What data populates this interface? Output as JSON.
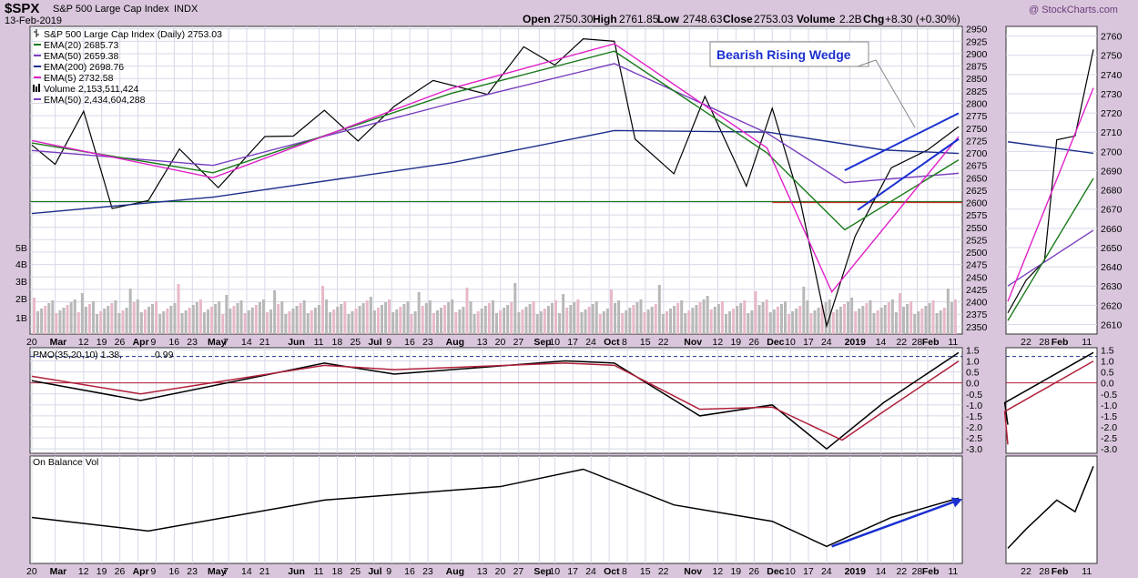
{
  "header": {
    "title": "$SPX",
    "subtitle": "S&P 500 Large Cap Index",
    "exchange": "INDX",
    "date": "13-Feb-2019",
    "watermark": "@ StockCharts.com",
    "open_label": "Open",
    "open": "2750.30",
    "high_label": "High",
    "high": "2761.85",
    "low_label": "Low",
    "low": "2748.63",
    "close_label": "Close",
    "close": "2753.03",
    "volume_label": "Volume",
    "volume": "2.2B",
    "chg_label": "Chg",
    "chg": "+8.30 (+0.30%)"
  },
  "legend": [
    {
      "text": "S&P 500 Large Cap Index (Daily) 2753.03",
      "color": "#000000",
      "icon": "candlestick-icon"
    },
    {
      "text": "EMA(20) 2685.73",
      "color": "#1a7a1a",
      "icon": "line"
    },
    {
      "text": "EMA(50) 2659.38",
      "color": "#7a3fbf",
      "icon": "line"
    },
    {
      "text": "EMA(200) 2698.76",
      "color": "#1c2f8a",
      "icon": "line"
    },
    {
      "text": "EMA(5) 2732.58",
      "color": "#e020c8",
      "icon": "line"
    },
    {
      "text": "Volume 2,153,511,424",
      "color": "#000000",
      "icon": "volume-bars-icon"
    },
    {
      "text": "EMA(50) 2,434,604,288",
      "color": "#7a3fbf",
      "icon": "line"
    }
  ],
  "annotation": "Bearish Rising Wedge",
  "pmo_label": "PMO(35,20,10) 1.38,",
  "pmo_signal_value": "0.99",
  "obv_label": "On Balance Vol",
  "colors": {
    "price": "#000000",
    "ema20": "#1a7a1a",
    "ema50": "#7a3fbf",
    "ema200": "#1c2f8a",
    "ema5": "#e020c8",
    "support": "#1a7a1a",
    "resistance": "#c83030",
    "annotation": "#1a2fd0",
    "pmo": "#000000",
    "pmo_signal": "#b0203a",
    "vol_up": "#b8b8b8",
    "vol_down": "#e8b8c8"
  },
  "chart_data": [
    {
      "type": "line",
      "panel": "price-main",
      "title": "S&P 500 Large Cap Index (Daily)",
      "x_tick_labels": [
        "20",
        "Mar",
        "12",
        "19",
        "26",
        "Apr",
        "9",
        "16",
        "23",
        "May",
        "7",
        "14",
        "21",
        "Jun",
        "11",
        "18",
        "25",
        "Jul",
        "9",
        "16",
        "23",
        "Aug",
        "13",
        "20",
        "27",
        "Sep",
        "10",
        "17",
        "24",
        "Oct",
        "8",
        "15",
        "22",
        "Nov",
        "12",
        "19",
        "26",
        "Dec",
        "10",
        "17",
        "24",
        "2019",
        "14",
        "22",
        "28",
        "Feb",
        "11"
      ],
      "x_range": [
        "2018-02-20",
        "2019-02-13"
      ],
      "ylim": [
        2335,
        2955
      ],
      "y_ticks": [
        2350,
        2375,
        2400,
        2425,
        2450,
        2475,
        2500,
        2525,
        2550,
        2575,
        2600,
        2625,
        2650,
        2675,
        2700,
        2725,
        2750,
        2775,
        2800,
        2825,
        2850,
        2875,
        2900,
        2925,
        2950
      ],
      "volume_axis_labels": [
        "1B",
        "2B",
        "3B",
        "4B",
        "5B"
      ],
      "horizontal_lines": [
        {
          "y": 2602,
          "color": "green",
          "span": "full"
        },
        {
          "y": 2600,
          "color": "red",
          "span": "2018-12-03 to 2019-02-13"
        }
      ],
      "series": [
        {
          "name": "S&P 500 Large Cap Index (Daily)",
          "x": [
            "2018-02-20",
            "2018-03-01",
            "2018-03-12",
            "2018-03-23",
            "2018-04-06",
            "2018-04-18",
            "2018-05-03",
            "2018-05-21",
            "2018-06-01",
            "2018-06-13",
            "2018-06-26",
            "2018-07-10",
            "2018-07-25",
            "2018-08-15",
            "2018-08-29",
            "2018-09-10",
            "2018-09-21",
            "2018-10-03",
            "2018-10-11",
            "2018-10-26",
            "2018-11-07",
            "2018-11-23",
            "2018-12-03",
            "2018-12-14",
            "2018-12-24",
            "2019-01-04",
            "2019-01-18",
            "2019-02-01",
            "2019-02-13"
          ],
          "values": [
            2716,
            2677,
            2784,
            2588,
            2604,
            2708,
            2630,
            2733,
            2734,
            2786,
            2724,
            2794,
            2846,
            2818,
            2914,
            2877,
            2930,
            2925,
            2728,
            2658,
            2814,
            2633,
            2790,
            2599,
            2351,
            2532,
            2670,
            2706,
            2753
          ]
        },
        {
          "name": "EMA(200)",
          "x": [
            "2018-02-20",
            "2018-05-01",
            "2018-08-01",
            "2018-10-03",
            "2018-12-01",
            "2019-01-15",
            "2019-02-13"
          ],
          "values": [
            2578,
            2611,
            2680,
            2745,
            2742,
            2706,
            2699
          ]
        },
        {
          "name": "EMA(50)",
          "x": [
            "2018-02-20",
            "2018-05-01",
            "2018-08-01",
            "2018-10-03",
            "2018-12-01",
            "2018-12-31",
            "2019-02-13"
          ],
          "values": [
            2705,
            2675,
            2800,
            2880,
            2740,
            2640,
            2659
          ]
        },
        {
          "name": "EMA(20)",
          "x": [
            "2018-02-20",
            "2018-05-01",
            "2018-08-01",
            "2018-10-03",
            "2018-12-01",
            "2018-12-31",
            "2019-02-13"
          ],
          "values": [
            2720,
            2660,
            2820,
            2905,
            2700,
            2545,
            2686
          ]
        },
        {
          "name": "EMA(5)",
          "x": [
            "2018-02-20",
            "2018-05-01",
            "2018-08-01",
            "2018-10-03",
            "2018-12-01",
            "2018-12-26",
            "2019-02-13"
          ],
          "values": [
            2725,
            2650,
            2830,
            2920,
            2710,
            2420,
            2733
          ]
        }
      ]
    },
    {
      "type": "line",
      "panel": "price-inset",
      "x_tick_labels": [
        "22",
        "28",
        "Feb",
        "11"
      ],
      "ylim": [
        2605,
        2765
      ],
      "y_ticks": [
        2610,
        2620,
        2630,
        2640,
        2650,
        2660,
        2670,
        2680,
        2690,
        2700,
        2710,
        2720,
        2730,
        2740,
        2750,
        2760
      ],
      "series": [
        {
          "name": "S&P 500 Large Cap Index (Daily)",
          "x": [
            "2019-01-16",
            "2019-01-22",
            "2019-01-28",
            "2019-02-01",
            "2019-02-07",
            "2019-02-13"
          ],
          "values": [
            2616,
            2633,
            2643,
            2706,
            2708,
            2753
          ]
        },
        {
          "name": "EMA(200)",
          "x": [
            "2019-01-16",
            "2019-02-13"
          ],
          "values": [
            2705,
            2699
          ]
        },
        {
          "name": "EMA(50)",
          "x": [
            "2019-01-16",
            "2019-02-13"
          ],
          "values": [
            2630,
            2659
          ]
        },
        {
          "name": "EMA(20)",
          "x": [
            "2019-01-16",
            "2019-02-13"
          ],
          "values": [
            2612,
            2686
          ]
        },
        {
          "name": "EMA(5)",
          "x": [
            "2019-01-16",
            "2019-02-13"
          ],
          "values": [
            2622,
            2733
          ]
        }
      ]
    },
    {
      "type": "line",
      "panel": "pmo",
      "ylim": [
        -3.2,
        1.6
      ],
      "y_ticks": [
        -3.0,
        -2.5,
        -2.0,
        -1.5,
        -1.0,
        -0.5,
        0.0,
        0.5,
        1.0,
        1.5
      ],
      "reference_lines": [
        {
          "y": 1.2,
          "style": "dashed"
        },
        {
          "y": 0.0,
          "color": "red"
        }
      ],
      "series": [
        {
          "name": "PMO",
          "x": [
            "2018-02-20",
            "2018-04-03",
            "2018-06-13",
            "2018-07-10",
            "2018-09-14",
            "2018-10-03",
            "2018-11-05",
            "2018-12-03",
            "2018-12-24",
            "2019-01-15",
            "2019-02-13"
          ],
          "values": [
            0.1,
            -0.8,
            0.9,
            0.4,
            1.0,
            0.9,
            -1.5,
            -1.0,
            -3.0,
            -0.9,
            1.38
          ]
        },
        {
          "name": "Signal",
          "x": [
            "2018-02-20",
            "2018-04-03",
            "2018-06-13",
            "2018-07-10",
            "2018-09-14",
            "2018-10-03",
            "2018-11-05",
            "2018-12-03",
            "2018-12-30",
            "2019-01-15",
            "2019-02-13"
          ],
          "values": [
            0.3,
            -0.5,
            0.8,
            0.6,
            0.9,
            0.8,
            -1.2,
            -1.1,
            -2.6,
            -1.3,
            0.99
          ]
        }
      ]
    },
    {
      "type": "line",
      "panel": "obv",
      "series": [
        {
          "name": "On Balance Vol",
          "x": [
            "2018-02-20",
            "2018-04-06",
            "2018-06-13",
            "2018-08-20",
            "2018-09-21",
            "2018-10-26",
            "2018-12-03",
            "2018-12-24",
            "2019-01-18",
            "2019-02-13"
          ],
          "values": [
            42,
            28,
            60,
            74,
            92,
            55,
            38,
            12,
            42,
            62
          ]
        }
      ]
    }
  ]
}
